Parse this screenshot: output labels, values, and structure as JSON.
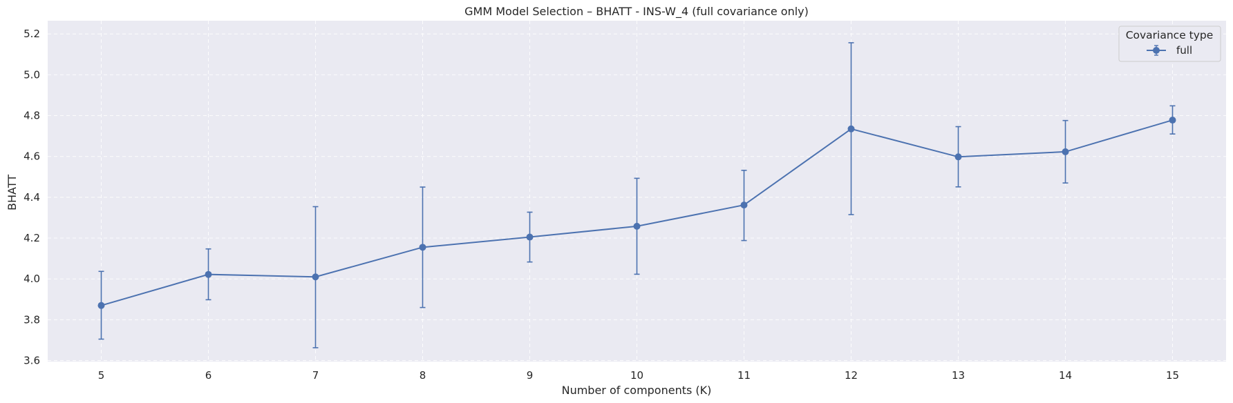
{
  "chart_data": {
    "type": "line",
    "title": "GMM Model Selection – BHATT - INS-W_4 (full covariance only)",
    "xlabel": "Number of components (K)",
    "ylabel": "BHATT",
    "x": [
      5,
      6,
      7,
      8,
      9,
      10,
      11,
      12,
      13,
      14,
      15
    ],
    "xticks": [
      "5",
      "6",
      "7",
      "8",
      "9",
      "10",
      "11",
      "12",
      "13",
      "14",
      "15"
    ],
    "yticks": [
      "3.6",
      "3.8",
      "4.0",
      "4.2",
      "4.4",
      "4.6",
      "4.8",
      "5.0",
      "5.2"
    ],
    "ylim": [
      3.595,
      5.265
    ],
    "xlim": [
      4.5,
      15.5
    ],
    "grid": true,
    "legend": {
      "title": "Covariance type",
      "position": "top-right"
    },
    "series": [
      {
        "name": "full",
        "color": "#4c72b0",
        "values": [
          3.87,
          4.022,
          4.01,
          4.155,
          4.205,
          4.258,
          4.362,
          4.735,
          4.598,
          4.623,
          4.778
        ],
        "err_low": [
          3.705,
          3.898,
          3.663,
          3.86,
          4.083,
          4.023,
          4.188,
          4.315,
          4.451,
          4.47,
          4.71
        ],
        "err_high": [
          4.037,
          4.147,
          4.354,
          4.45,
          4.327,
          4.493,
          4.532,
          5.157,
          4.746,
          4.776,
          4.848
        ]
      }
    ]
  },
  "colors": {
    "plot_bg": "#eaeaf2",
    "grid": "#ffffff",
    "series": "#4c72b0"
  }
}
